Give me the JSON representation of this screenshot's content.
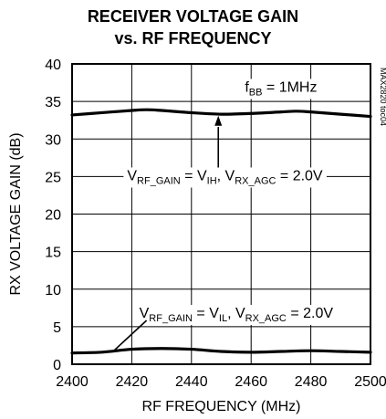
{
  "chart_data": {
    "type": "line",
    "title_line1": "RECEIVER VOLTAGE GAIN",
    "title_line2": "vs. RF FREQUENCY",
    "xlabel": "RF FREQUENCY (MHz)",
    "ylabel": "RX VOLTAGE GAIN (dB)",
    "xlim": [
      2400,
      2500
    ],
    "ylim": [
      0,
      40
    ],
    "xticks": [
      2400,
      2420,
      2440,
      2460,
      2480,
      2500
    ],
    "yticks": [
      0,
      5,
      10,
      15,
      20,
      25,
      30,
      35,
      40
    ],
    "grid": true,
    "side_label": "MAX2820 toc04",
    "annotations": {
      "fbb": {
        "main": "f",
        "sub": "BB",
        "rest": " = 1MHz"
      },
      "upper": {
        "p1": "V",
        "s1": "RF_GAIN",
        "p2": " = V",
        "s2": "IH",
        "p3": ", V",
        "s3": "RX_AGC",
        "p4": " = 2.0V"
      },
      "lower": {
        "p1": "V",
        "s1": "RF_GAIN",
        "p2": " = V",
        "s2": "IL",
        "p3": ", V",
        "s3": "RX_AGC",
        "p4": " = 2.0V"
      }
    },
    "series": [
      {
        "x": [
          2400,
          2410,
          2420,
          2425,
          2430,
          2440,
          2450,
          2460,
          2470,
          2475,
          2480,
          2490,
          2500
        ],
        "values": [
          33.2,
          33.5,
          33.8,
          33.9,
          33.8,
          33.5,
          33.3,
          33.4,
          33.6,
          33.7,
          33.6,
          33.3,
          33.0
        ]
      },
      {
        "x": [
          2400,
          2410,
          2420,
          2430,
          2440,
          2450,
          2460,
          2470,
          2480,
          2490,
          2500
        ],
        "values": [
          1.5,
          1.6,
          2.0,
          2.1,
          2.0,
          1.7,
          1.6,
          1.7,
          1.8,
          1.7,
          1.6
        ]
      }
    ]
  }
}
